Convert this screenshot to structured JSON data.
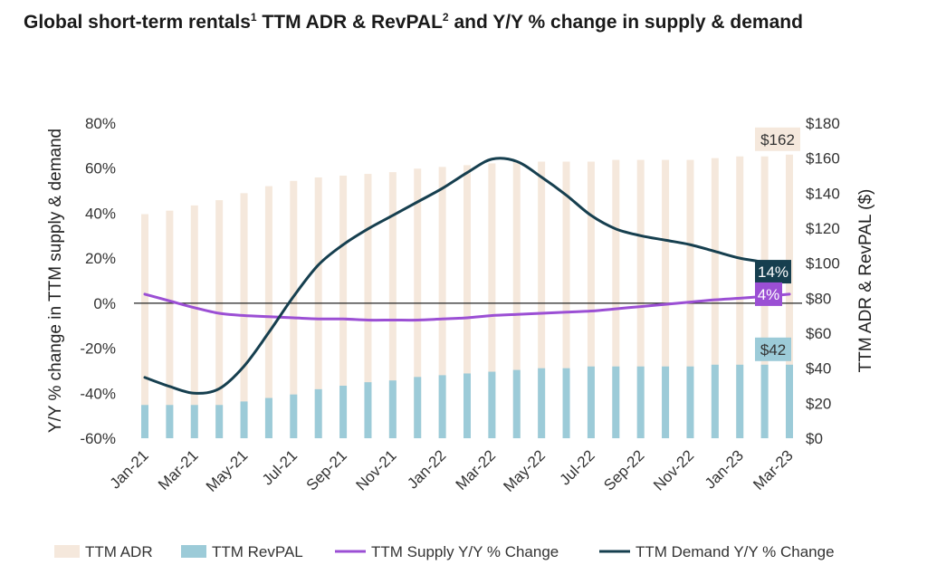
{
  "chart_data": {
    "type": "bar",
    "title": {
      "part1": "Global short-term rentals",
      "sup1": "1",
      "part2": " TTM ADR & RevPAL",
      "sup2": "2",
      "part3": " and Y/Y % change in supply & demand"
    },
    "categories": [
      "Jan-21",
      "Feb-21",
      "Mar-21",
      "Apr-21",
      "May-21",
      "Jun-21",
      "Jul-21",
      "Aug-21",
      "Sep-21",
      "Oct-21",
      "Nov-21",
      "Dec-21",
      "Jan-22",
      "Feb-22",
      "Mar-22",
      "Apr-22",
      "May-22",
      "Jun-22",
      "Jul-22",
      "Aug-22",
      "Sep-22",
      "Oct-22",
      "Nov-22",
      "Dec-22",
      "Jan-23",
      "Feb-23",
      "Mar-23"
    ],
    "tick_labels": [
      "Jan-21",
      "Mar-21",
      "May-21",
      "Jul-21",
      "Sep-21",
      "Nov-21",
      "Jan-22",
      "Mar-22",
      "May-22",
      "Jul-22",
      "Sep-22",
      "Nov-22",
      "Jan-23",
      "Mar-23"
    ],
    "y_left": {
      "label": "Y/Y % change in TTM supply & demand",
      "range": [
        -60,
        80
      ],
      "ticks": [
        -60,
        -40,
        -20,
        0,
        20,
        40,
        60,
        80
      ],
      "tick_labels": [
        "-60%",
        "-40%",
        "-20%",
        "0%",
        "20%",
        "40%",
        "60%",
        "80%"
      ]
    },
    "y_right": {
      "label": "TTM ADR & RevPAL ($)",
      "range": [
        0,
        180
      ],
      "ticks": [
        0,
        20,
        40,
        60,
        80,
        100,
        120,
        140,
        160,
        180
      ],
      "tick_labels": [
        "$0",
        "$20",
        "$40",
        "$60",
        "$80",
        "$100",
        "$120",
        "$140",
        "$160",
        "$180"
      ]
    },
    "series": [
      {
        "name": "TTM ADR",
        "kind": "bar",
        "axis": "right",
        "color": "#f5e8dc",
        "values": [
          128,
          130,
          133,
          136,
          140,
          144,
          147,
          149,
          150,
          151,
          152,
          154,
          155,
          156,
          157,
          158,
          158,
          158,
          158,
          159,
          159,
          159,
          159,
          160,
          161,
          161,
          162
        ]
      },
      {
        "name": "TTM RevPAL",
        "kind": "bar",
        "axis": "right",
        "color": "#9ccbd8",
        "values": [
          19,
          19,
          19,
          19,
          21,
          23,
          25,
          28,
          30,
          32,
          33,
          35,
          36,
          37,
          38,
          39,
          40,
          40,
          41,
          41,
          41,
          41,
          41,
          42,
          42,
          42,
          42
        ]
      },
      {
        "name": "TTM Supply Y/Y % Change",
        "kind": "line",
        "axis": "left",
        "color": "#9b4fd4",
        "values": [
          4,
          1,
          -2,
          -4.5,
          -5.5,
          -6,
          -6.5,
          -7,
          -7,
          -7.5,
          -7.5,
          -7.5,
          -7,
          -6.5,
          -5.5,
          -5,
          -4.5,
          -4,
          -3.5,
          -2.5,
          -1.5,
          -0.5,
          0.5,
          1.5,
          2.2,
          3,
          4
        ]
      },
      {
        "name": "TTM Demand Y/Y % Change",
        "kind": "line",
        "axis": "left",
        "color": "#163f4f",
        "values": [
          -33,
          -37,
          -40,
          -38,
          -28,
          -13,
          3,
          17,
          26,
          33,
          39,
          45,
          51,
          58,
          64,
          63,
          56,
          48,
          39,
          33,
          30,
          28,
          26,
          23,
          20,
          18,
          14
        ]
      }
    ],
    "callouts": [
      {
        "text": "$162",
        "series": 0,
        "bg": "#f5e8dc",
        "fg": "#333333"
      },
      {
        "text": "14%",
        "series": 3,
        "bg": "#163f4f",
        "fg": "#ffffff"
      },
      {
        "text": "4%",
        "series": 2,
        "bg": "#9b4fd4",
        "fg": "#ffffff"
      },
      {
        "text": "$42",
        "series": 1,
        "bg": "#9ccbd8",
        "fg": "#333333"
      }
    ],
    "legend": {
      "position": "bottom"
    },
    "grid": false
  }
}
